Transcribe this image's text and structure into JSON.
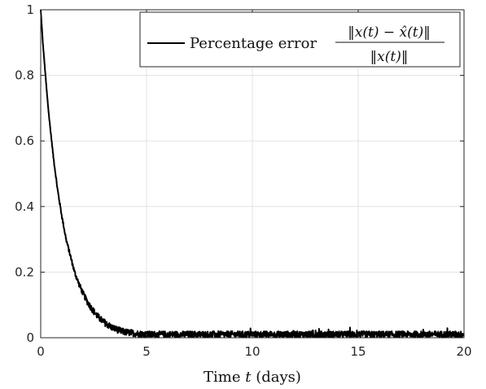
{
  "chart_data": {
    "type": "line",
    "title": "",
    "xlabel": "Time $t$ (days)",
    "ylabel": "",
    "xlim": [
      0,
      20
    ],
    "ylim": [
      0,
      1
    ],
    "xticks": [
      0,
      5,
      10,
      15,
      20
    ],
    "xtick_labels": [
      "0",
      "5",
      "10",
      "15",
      "20"
    ],
    "yticks": [
      0,
      0.2,
      0.4,
      0.6,
      0.8,
      1
    ],
    "ytick_labels": [
      "0",
      "0.2",
      "0.4",
      "0.6",
      "0.8",
      "1"
    ],
    "grid": true,
    "legend_position": "top-right",
    "series": [
      {
        "name": "Percentage error",
        "name_formula": "‖x(t) − x̂(t)‖ / ‖x(t)‖",
        "color": "#000000",
        "x": [
          0,
          0.1,
          0.2,
          0.3,
          0.4,
          0.5,
          0.6,
          0.7,
          0.8,
          0.9,
          1.0,
          1.2,
          1.4,
          1.6,
          1.8,
          2.0,
          2.2,
          2.4,
          2.6,
          2.8,
          3.0,
          3.2,
          3.4,
          3.6,
          3.8,
          4.0,
          4.5,
          5.0,
          6,
          7,
          8,
          9,
          10,
          11,
          12,
          13,
          14,
          15,
          16,
          17,
          18,
          19,
          20
        ],
        "y": [
          1.0,
          0.9,
          0.82,
          0.74,
          0.67,
          0.61,
          0.55,
          0.5,
          0.45,
          0.41,
          0.37,
          0.3,
          0.25,
          0.2,
          0.165,
          0.135,
          0.11,
          0.09,
          0.072,
          0.058,
          0.047,
          0.038,
          0.03,
          0.025,
          0.02,
          0.017,
          0.013,
          0.01,
          0.01,
          0.01,
          0.01,
          0.01,
          0.01,
          0.01,
          0.01,
          0.01,
          0.01,
          0.01,
          0.01,
          0.01,
          0.01,
          0.01,
          0.01
        ],
        "noise_band": 0.02
      }
    ]
  },
  "legend": {
    "label": "Percentage error",
    "formula_numerator": "‖x(t) − x̂(t)‖",
    "formula_denominator": "‖x(t)‖"
  }
}
